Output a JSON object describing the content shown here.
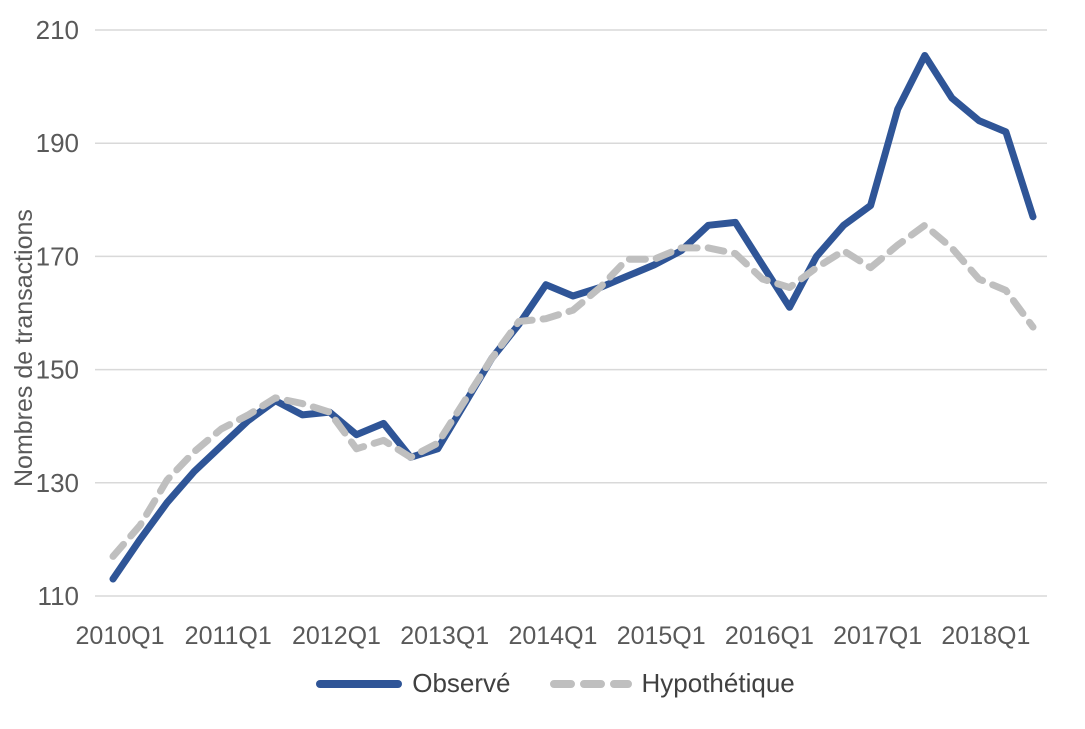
{
  "chart_data": {
    "type": "line",
    "ylabel": "Nombres de transactions",
    "ylim": [
      110,
      210
    ],
    "yticks": [
      110,
      130,
      150,
      170,
      190,
      210
    ],
    "grid": true,
    "legend_position": "bottom",
    "x_axis_labels": [
      "2010Q1",
      "2011Q1",
      "2012Q1",
      "2013Q1",
      "2014Q1",
      "2015Q1",
      "2016Q1",
      "2017Q1",
      "2018Q1"
    ],
    "x": [
      "2010Q1",
      "2010Q2",
      "2010Q3",
      "2010Q4",
      "2011Q1",
      "2011Q2",
      "2011Q3",
      "2011Q4",
      "2012Q1",
      "2012Q2",
      "2012Q3",
      "2012Q4",
      "2013Q1",
      "2013Q2",
      "2013Q3",
      "2013Q4",
      "2014Q1",
      "2014Q2",
      "2014Q3",
      "2014Q4",
      "2015Q1",
      "2015Q2",
      "2015Q3",
      "2015Q4",
      "2016Q1",
      "2016Q2",
      "2016Q3",
      "2016Q4",
      "2017Q1",
      "2017Q2",
      "2017Q3",
      "2017Q4",
      "2018Q1",
      "2018Q2",
      "2018Q3"
    ],
    "series": [
      {
        "name": "Observé",
        "style": "solid",
        "color": "#2F5597",
        "values": [
          113,
          120,
          126.5,
          132,
          136.5,
          141,
          144.5,
          142,
          142.5,
          138.5,
          140.5,
          134.5,
          136,
          144,
          152,
          158,
          165,
          163,
          164.5,
          166.5,
          168.5,
          171,
          175.5,
          176,
          168.5,
          161,
          170,
          175.5,
          179,
          196,
          205.5,
          198,
          194,
          192,
          177
        ]
      },
      {
        "name": "Hypothétique",
        "style": "dashed",
        "color": "#bfbfbf",
        "values": [
          117,
          122.5,
          130.5,
          135.5,
          139.5,
          142,
          145,
          144,
          142.5,
          136,
          137.5,
          134.5,
          137,
          144.5,
          152,
          158.5,
          159,
          160.5,
          164.5,
          169.5,
          169.5,
          171.5,
          171.5,
          170.5,
          166,
          164.5,
          168,
          171,
          168,
          172,
          175.5,
          171.5,
          166,
          164,
          157.5
        ]
      }
    ],
    "colors": {
      "gridline": "#d9d9d9",
      "axis_text": "#595959",
      "legend_text": "#404040",
      "background": "#ffffff"
    }
  }
}
